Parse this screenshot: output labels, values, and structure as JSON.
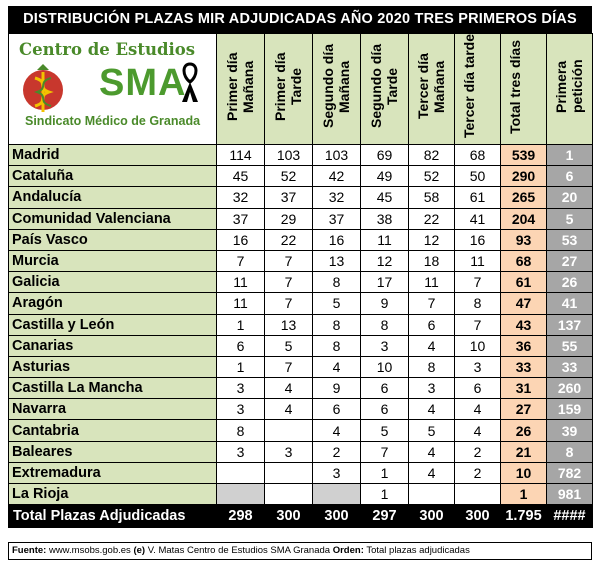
{
  "title": "DISTRIBUCIÓN PLAZAS MIR ADJUDICADAS AÑO 2020 TRES PRIMEROS DÍAS",
  "logo": {
    "top_text": "Centro de Estudios",
    "brand": "SMA",
    "bottom_text": "Sindicato Médico de Granada",
    "icon": "caduceus-pomegranate-icon",
    "ribbon_icon": "mourning-ribbon-icon",
    "accent_color": "#4a8a2a"
  },
  "chart_data": {
    "type": "table",
    "columns": [
      "Primer día Mañana",
      "Primer día Tarde",
      "Segundo día Mañana",
      "Segundo día Tarde",
      "Tercer día Mañana",
      "Tercer día tarde",
      "Total tres días",
      "Primera petición"
    ],
    "rows": [
      {
        "region": "Madrid",
        "values": [
          "114",
          "103",
          "103",
          "69",
          "82",
          "68",
          "539",
          "1"
        ]
      },
      {
        "region": "Cataluña",
        "values": [
          "45",
          "52",
          "42",
          "49",
          "52",
          "50",
          "290",
          "6"
        ]
      },
      {
        "region": "Andalucía",
        "values": [
          "32",
          "37",
          "32",
          "45",
          "58",
          "61",
          "265",
          "20"
        ]
      },
      {
        "region": "Comunidad Valenciana",
        "values": [
          "37",
          "29",
          "37",
          "38",
          "22",
          "41",
          "204",
          "5"
        ]
      },
      {
        "region": "País Vasco",
        "values": [
          "16",
          "22",
          "16",
          "11",
          "12",
          "16",
          "93",
          "53"
        ]
      },
      {
        "region": "Murcia",
        "values": [
          "7",
          "7",
          "13",
          "12",
          "18",
          "11",
          "68",
          "27"
        ]
      },
      {
        "region": "Galicia",
        "values": [
          "11",
          "7",
          "8",
          "17",
          "11",
          "7",
          "61",
          "26"
        ]
      },
      {
        "region": "Aragón",
        "values": [
          "11",
          "7",
          "5",
          "9",
          "7",
          "8",
          "47",
          "41"
        ]
      },
      {
        "region": "Castilla y León",
        "values": [
          "1",
          "13",
          "8",
          "8",
          "6",
          "7",
          "43",
          "137"
        ]
      },
      {
        "region": "Canarias",
        "values": [
          "6",
          "5",
          "8",
          "3",
          "4",
          "10",
          "36",
          "55"
        ]
      },
      {
        "region": "Asturias",
        "values": [
          "1",
          "7",
          "4",
          "10",
          "8",
          "3",
          "33",
          "33"
        ]
      },
      {
        "region": "Castilla La Mancha",
        "values": [
          "3",
          "4",
          "9",
          "6",
          "3",
          "6",
          "31",
          "260"
        ]
      },
      {
        "region": "Navarra",
        "values": [
          "3",
          "4",
          "6",
          "6",
          "4",
          "4",
          "27",
          "159"
        ]
      },
      {
        "region": "Cantabria",
        "values": [
          "8",
          "",
          "4",
          "5",
          "5",
          "4",
          "26",
          "39"
        ]
      },
      {
        "region": "Baleares",
        "values": [
          "3",
          "3",
          "2",
          "7",
          "4",
          "2",
          "21",
          "8"
        ]
      },
      {
        "region": "Extremadura",
        "values": [
          "",
          "",
          "3",
          "1",
          "4",
          "2",
          "10",
          "782"
        ]
      },
      {
        "region": "La Rioja",
        "values": [
          "",
          "",
          "",
          "1",
          "",
          "",
          "1",
          "981"
        ]
      }
    ],
    "grey_cells": [
      [
        16,
        0
      ],
      [
        16,
        2
      ]
    ],
    "totals": {
      "label": "Total Plazas Adjudicadas",
      "values": [
        "298",
        "300",
        "300",
        "297",
        "300",
        "300",
        "1.795",
        "####"
      ]
    }
  },
  "source": {
    "fuente_label": "Fuente:",
    "fuente_value": "www.msobs.gob.es",
    "e_label": "(e)",
    "e_value": "V. Matas Centro de Estudios SMA Granada",
    "orden_label": "Orden:",
    "orden_value": "Total plazas adjudicadas"
  },
  "colors": {
    "region_bg": "#d8e4bc",
    "total_bg": "#fcd5b4",
    "peticion_bg": "#a6a6a6",
    "blank_bg": "#d0d0d0",
    "header_bg": "#000000"
  }
}
